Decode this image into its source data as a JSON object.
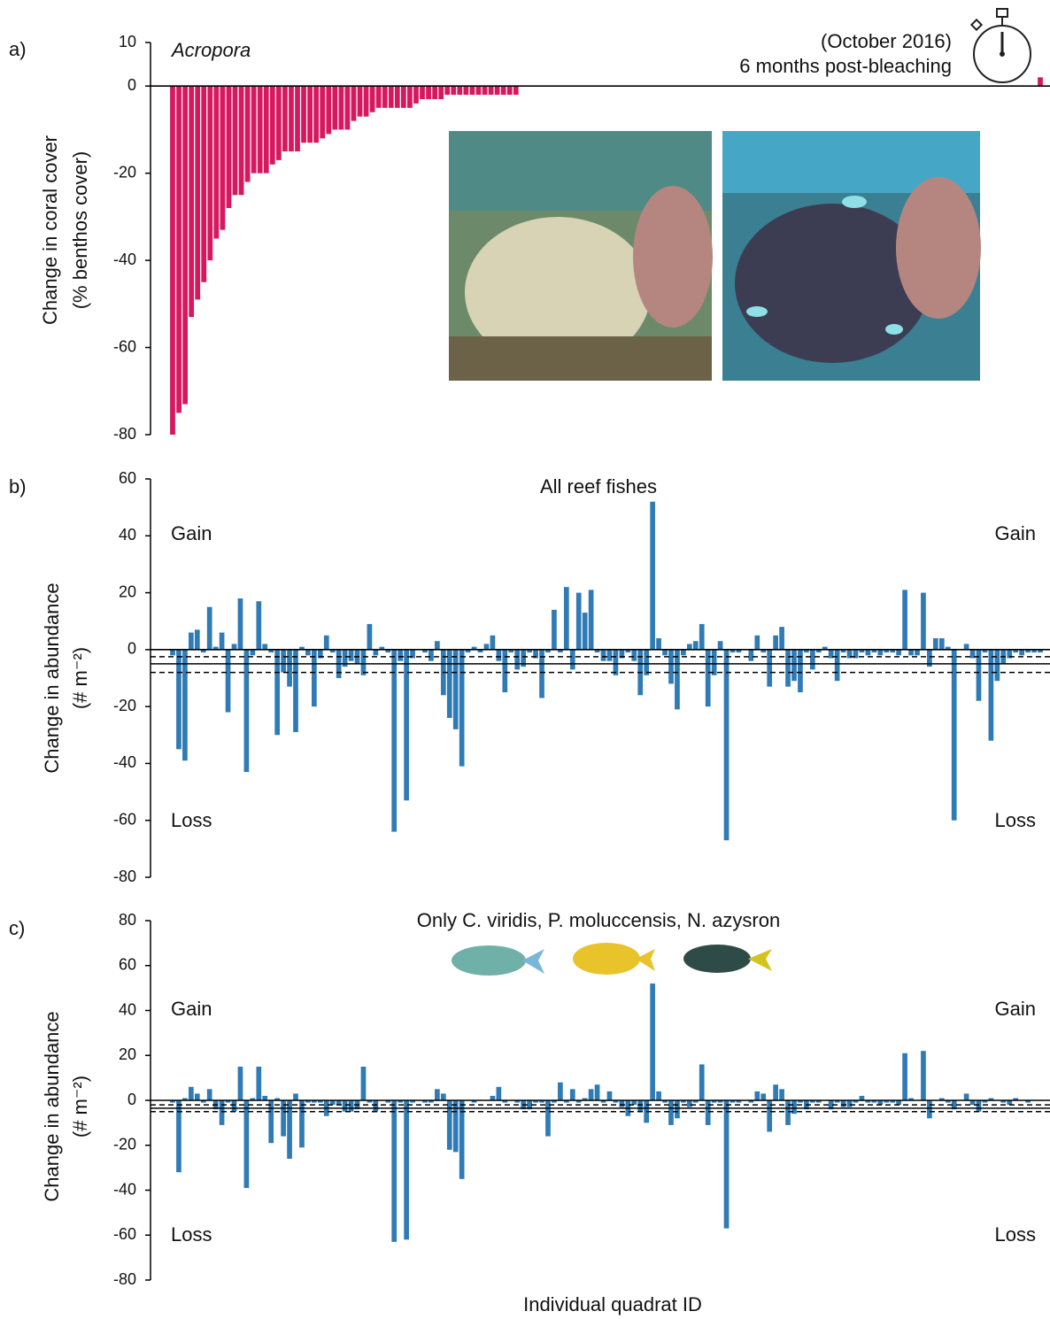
{
  "chart_data": [
    {
      "type": "bar",
      "panel_label": "a)",
      "title": "Acropora",
      "note": [
        "(October 2016)",
        "6 months post-bleaching"
      ],
      "ylabel": [
        "Change in coral cover",
        "(% benthos cover)"
      ],
      "color": "#d6185f",
      "ylim": [
        -80,
        10
      ],
      "yticks": [
        -80,
        -60,
        -40,
        -20,
        0,
        10
      ],
      "values": [
        -80,
        -75,
        -73,
        -53,
        -49,
        -45,
        -40,
        -35,
        -33,
        -28,
        -25,
        -25,
        -22,
        -20,
        -20,
        -20,
        -18,
        -17,
        -15,
        -15,
        -15,
        -13,
        -13,
        -13,
        -12,
        -11,
        -10,
        -10,
        -10,
        -8,
        -7,
        -7,
        -6,
        -5,
        -5,
        -5,
        -5,
        -5,
        -5,
        -4,
        -3,
        -3,
        -3,
        -3,
        -2,
        -2,
        -2,
        -2,
        -2,
        -2,
        -2,
        -2,
        -2,
        -2,
        -2,
        -2,
        0,
        0,
        0,
        0,
        0,
        0,
        0,
        0,
        0,
        0,
        0,
        0,
        0,
        0,
        0,
        0,
        0,
        0,
        0,
        0,
        0,
        0,
        0,
        0,
        0,
        0,
        0,
        0,
        0,
        0,
        0,
        0,
        0,
        0,
        0,
        0,
        0,
        0,
        0,
        0,
        0,
        0,
        0,
        0,
        0,
        0,
        0,
        0,
        0,
        0,
        0,
        0,
        0,
        0,
        0,
        0,
        0,
        0,
        0,
        0,
        0,
        0,
        0,
        0,
        0,
        0,
        0,
        0,
        0,
        0,
        0,
        0,
        0,
        0,
        0,
        0,
        0,
        0,
        0,
        0,
        0,
        0,
        0,
        2
      ]
    },
    {
      "type": "bar",
      "panel_label": "b)",
      "title": "All reef fishes",
      "gain": "Gain",
      "loss": "Loss",
      "ylabel": [
        "Change in abundance",
        "(# m⁻²)"
      ],
      "color": "#2f7bb5",
      "ylim": [
        -80,
        60
      ],
      "yticks": [
        -80,
        -60,
        -40,
        -20,
        0,
        20,
        40,
        60
      ],
      "mean": -5,
      "ci": [
        -2.5,
        -8
      ],
      "values": [
        -2,
        -35,
        -39,
        6,
        7,
        -1,
        15,
        1,
        6,
        -22,
        2,
        18,
        -43,
        -2,
        17,
        2,
        -1,
        -30,
        -8,
        -13,
        -29,
        1,
        -2,
        -20,
        -3,
        5,
        -1,
        -10,
        -6,
        -4,
        -5,
        -9,
        9,
        -2,
        1,
        -1,
        -64,
        -4,
        -53,
        -3,
        0,
        -1,
        -4,
        3,
        -16,
        -24,
        -28,
        -41,
        -1,
        1,
        -1,
        2,
        5,
        -4,
        -15,
        -1,
        -7,
        -6,
        -1,
        -3,
        -17,
        -1,
        14,
        -1,
        22,
        -7,
        20,
        13,
        21,
        -1,
        -4,
        -4,
        -9,
        -3,
        -1,
        -4,
        -16,
        -9,
        52,
        4,
        -2,
        -12,
        -21,
        -2,
        2,
        3,
        9,
        -20,
        -9,
        3,
        -67,
        -1,
        -1,
        0,
        -4,
        5,
        -1,
        -13,
        5,
        8,
        -13,
        -11,
        -15,
        -1,
        -7,
        -1,
        1,
        -3,
        -11,
        -1,
        -3,
        -3,
        -1,
        -2,
        -1,
        -2,
        -1,
        -1,
        -2,
        21,
        -2,
        -2,
        20,
        -6,
        4,
        4,
        1,
        -60,
        0,
        2,
        -3,
        -18,
        -1,
        -32,
        -11,
        -5,
        -3,
        -1,
        -2,
        -1,
        -1,
        -1
      ]
    },
    {
      "type": "bar",
      "panel_label": "c)",
      "title": "Only C. viridis, P. moluccensis, N. azysron",
      "gain": "Gain",
      "loss": "Loss",
      "ylabel": [
        "Change in abundance",
        "(# m⁻²)"
      ],
      "color": "#2f7bb5",
      "ylim": [
        -80,
        80
      ],
      "yticks": [
        -80,
        -60,
        -40,
        -20,
        0,
        20,
        40,
        60,
        80
      ],
      "mean": -3.5,
      "ci": [
        -2,
        -5
      ],
      "values": [
        -1,
        -32,
        1,
        6,
        3,
        -1,
        5,
        -4,
        -11,
        -1,
        -5,
        15,
        -39,
        1,
        15,
        2,
        -19,
        1,
        -16,
        -26,
        3,
        -21,
        -1,
        -1,
        -1,
        -7,
        -2,
        -2,
        -5,
        -5,
        -4,
        15,
        -1,
        -5,
        0,
        -1,
        -63,
        -1,
        -62,
        -1,
        0,
        -1,
        -1,
        5,
        3,
        -22,
        -23,
        -35,
        0,
        -1,
        0,
        0,
        2,
        6,
        -1,
        0,
        -1,
        -4,
        -4,
        -1,
        -1,
        -16,
        -1,
        8,
        -1,
        5,
        -1,
        1,
        5,
        7,
        -1,
        4,
        -1,
        -3,
        -7,
        -2,
        -5,
        -10,
        52,
        4,
        -1,
        -11,
        -8,
        -1,
        -3,
        -1,
        16,
        -11,
        -1,
        -1,
        -57,
        -1,
        -1,
        0,
        -1,
        4,
        3,
        -14,
        7,
        5,
        -11,
        -6,
        -1,
        -4,
        -1,
        -1,
        0,
        -4,
        -1,
        -3,
        -3,
        -1,
        2,
        -1,
        -1,
        -2,
        -1,
        -1,
        -2,
        21,
        1,
        0,
        22,
        -8,
        0,
        1,
        -1,
        -4,
        0,
        3,
        -2,
        -5,
        -1,
        1,
        0,
        -1,
        -2,
        1,
        0,
        -1,
        0,
        0
      ]
    }
  ],
  "xlabel": "Individual quadrat ID"
}
